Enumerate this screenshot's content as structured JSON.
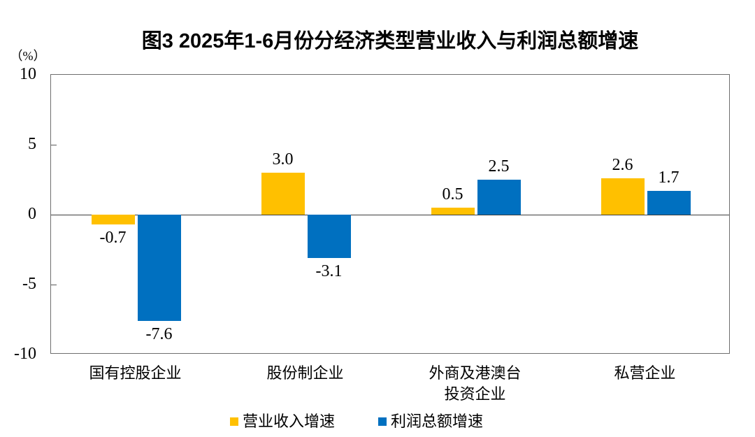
{
  "title": "图3 2025年1-6月份分经济类型营业收入与利润总额增速",
  "unit_label": "（%）",
  "chart_data": {
    "type": "bar",
    "title": "图3 2025年1-6月份分经济类型营业收入与利润总额增速",
    "unit_label": "（%）",
    "categories": [
      "国有控股企业",
      "股份制企业",
      "外商及港澳台\n投资企业",
      "私营企业"
    ],
    "series": [
      {
        "name": "营业收入增速",
        "color": "#FFC000",
        "values": [
          -0.7,
          3.0,
          0.5,
          2.6
        ],
        "labels": [
          "-0.7",
          "3.0",
          "0.5",
          "2.6"
        ]
      },
      {
        "name": "利润总额增速",
        "color": "#0070C0",
        "values": [
          -7.6,
          -3.1,
          2.5,
          1.7
        ],
        "labels": [
          "-7.6",
          "-3.1",
          "2.5",
          "1.7"
        ]
      }
    ],
    "ylim": [
      -10,
      10
    ],
    "yticks": [
      10,
      5,
      0,
      -5,
      -10
    ],
    "grid": false,
    "legend_position": "bottom",
    "axis_color": "#5a5a5a",
    "zero_line_color": "#3d3d3d"
  }
}
